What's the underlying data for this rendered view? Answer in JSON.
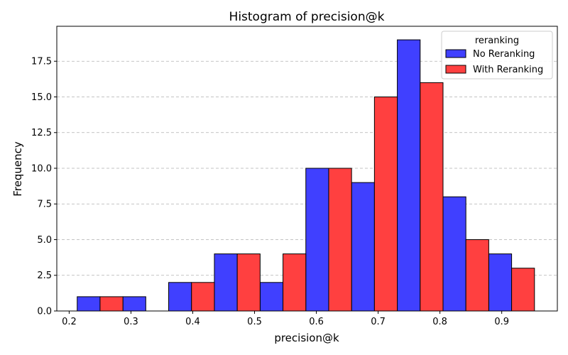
{
  "chart_data": {
    "type": "bar",
    "title": "Histogram of precision@k",
    "xlabel": "precision@k",
    "ylabel": "Frequency",
    "xlim": [
      0.18,
      0.99
    ],
    "ylim": [
      0,
      19.95
    ],
    "xticks": [
      0.2,
      0.3,
      0.4,
      0.5,
      0.6,
      0.7,
      0.8,
      0.9
    ],
    "yticks": [
      0.0,
      2.5,
      5.0,
      7.5,
      10.0,
      12.5,
      15.0,
      17.5
    ],
    "grid": "y-dashed",
    "legend": {
      "title": "reranking",
      "placement": "top-right"
    },
    "series": [
      {
        "name": "No Reranking",
        "color": "#4040ff",
        "bins": [
          {
            "x0": 0.213,
            "x1": 0.25,
            "value": 1
          },
          {
            "x0": 0.287,
            "x1": 0.324,
            "value": 1
          },
          {
            "x0": 0.361,
            "x1": 0.398,
            "value": 2
          },
          {
            "x0": 0.435,
            "x1": 0.472,
            "value": 4
          },
          {
            "x0": 0.509,
            "x1": 0.546,
            "value": 2
          },
          {
            "x0": 0.583,
            "x1": 0.62,
            "value": 10
          },
          {
            "x0": 0.657,
            "x1": 0.694,
            "value": 9
          },
          {
            "x0": 0.731,
            "x1": 0.768,
            "value": 19
          },
          {
            "x0": 0.805,
            "x1": 0.842,
            "value": 8
          },
          {
            "x0": 0.879,
            "x1": 0.916,
            "value": 4
          }
        ]
      },
      {
        "name": "With Reranking",
        "color": "#ff4040",
        "bins": [
          {
            "x0": 0.25,
            "x1": 0.287,
            "value": 1
          },
          {
            "x0": 0.398,
            "x1": 0.435,
            "value": 2
          },
          {
            "x0": 0.472,
            "x1": 0.509,
            "value": 4
          },
          {
            "x0": 0.546,
            "x1": 0.583,
            "value": 4
          },
          {
            "x0": 0.62,
            "x1": 0.657,
            "value": 10
          },
          {
            "x0": 0.694,
            "x1": 0.731,
            "value": 15
          },
          {
            "x0": 0.768,
            "x1": 0.805,
            "value": 16
          },
          {
            "x0": 0.842,
            "x1": 0.879,
            "value": 5
          },
          {
            "x0": 0.916,
            "x1": 0.953,
            "value": 3
          }
        ]
      }
    ]
  }
}
